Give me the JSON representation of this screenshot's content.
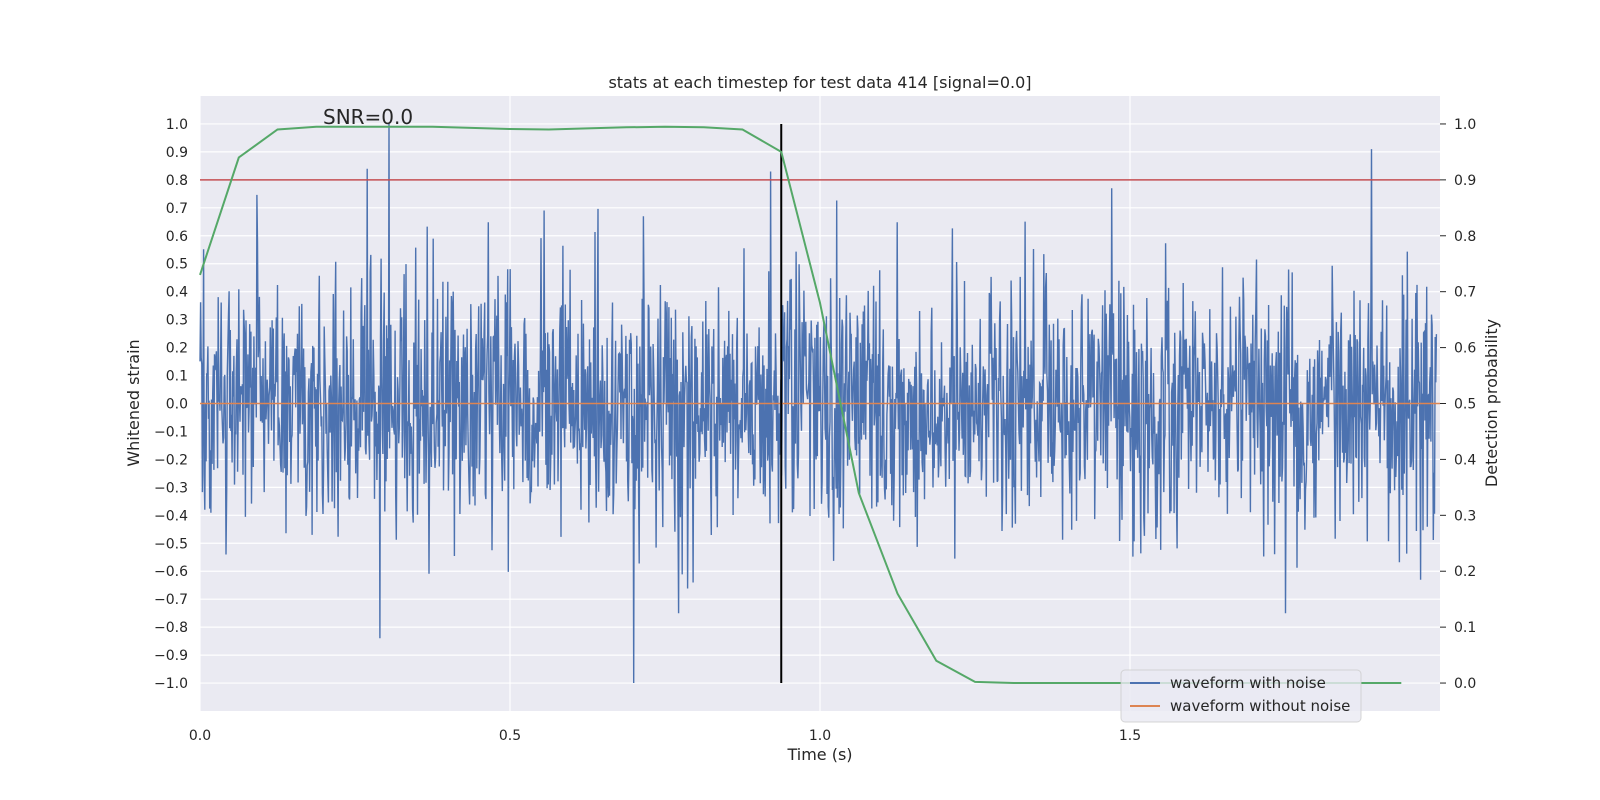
{
  "chart_data": {
    "type": "line",
    "title": "stats at each timestep for test data 414 [signal=0.0]",
    "annotation": "SNR=0.0",
    "xlabel": "Time (s)",
    "ylabel": "Whitened strain",
    "ylabel_right": "Detection probability",
    "xlim": [
      0.0,
      2.0
    ],
    "ylim": [
      -1.1,
      1.1
    ],
    "ylim_right": [
      -0.05,
      1.05
    ],
    "x_ticks": [
      "0.0",
      "0.5",
      "1.0",
      "1.5"
    ],
    "x_tick_values": [
      0.0,
      0.5,
      1.0,
      1.5
    ],
    "y_ticks": [
      "1.0",
      "0.9",
      "0.8",
      "0.7",
      "0.6",
      "0.5",
      "0.4",
      "0.3",
      "0.2",
      "0.1",
      "0.0",
      "−0.1",
      "−0.2",
      "−0.3",
      "−0.4",
      "−0.5",
      "−0.6",
      "−0.7",
      "−0.8",
      "−0.9",
      "−1.0"
    ],
    "y_tick_values": [
      1.0,
      0.9,
      0.8,
      0.7,
      0.6,
      0.5,
      0.4,
      0.3,
      0.2,
      0.1,
      0.0,
      -0.1,
      -0.2,
      -0.3,
      -0.4,
      -0.5,
      -0.6,
      -0.7,
      -0.8,
      -0.9,
      -1.0
    ],
    "y_ticks_right": [
      "1.0",
      "0.9",
      "0.8",
      "0.7",
      "0.6",
      "0.5",
      "0.4",
      "0.3",
      "0.2",
      "0.1",
      "0.0"
    ],
    "y_tick_values_right": [
      1.0,
      0.9,
      0.8,
      0.7,
      0.6,
      0.5,
      0.4,
      0.3,
      0.2,
      0.1,
      0.0
    ],
    "grid": true,
    "legend_position": "bottom-right",
    "series": [
      {
        "name": "waveform with noise",
        "color": "#4c72b0",
        "axis": "left",
        "style": "random noise, amplitude within about ±1.0, peak near t=0.305 reaching 1.0, minimum near t=0.70 reaching -1.0",
        "x_range": [
          0.0,
          2.0
        ],
        "samples": 2048,
        "notable_points": [
          [
            0.305,
            1.0
          ],
          [
            0.7,
            -1.0
          ],
          [
            1.89,
            0.91
          ],
          [
            0.27,
            0.84
          ],
          [
            0.92,
            0.83
          ],
          [
            0.29,
            -0.84
          ],
          [
            1.47,
            0.77
          ]
        ]
      },
      {
        "name": "waveform without noise",
        "color": "#dd8452",
        "axis": "left",
        "x": [
          0.0,
          2.0
        ],
        "y": [
          0.0,
          0.0
        ]
      },
      {
        "color": "#55a868",
        "axis": "right",
        "x": [
          0.0,
          0.0625,
          0.125,
          0.1875,
          0.25,
          0.3125,
          0.375,
          0.4375,
          0.5,
          0.5625,
          0.625,
          0.6875,
          0.75,
          0.8125,
          0.875,
          0.9375,
          1.0,
          1.0625,
          1.125,
          1.1875,
          1.25,
          1.3125,
          1.375,
          1.4375,
          1.5,
          1.5625,
          1.625,
          1.6875,
          1.75,
          1.8125,
          1.875,
          1.9375
        ],
        "y": [
          0.73,
          0.94,
          0.99,
          0.995,
          0.995,
          0.995,
          0.995,
          0.993,
          0.991,
          0.99,
          0.992,
          0.994,
          0.995,
          0.994,
          0.99,
          0.95,
          0.68,
          0.34,
          0.16,
          0.04,
          0.002,
          0.0,
          0.0,
          0.0,
          0.0,
          0.0,
          0.0,
          0.0,
          0.0,
          0.0,
          0.0,
          0.0
        ]
      }
    ],
    "reference_lines": [
      {
        "orientation": "horizontal",
        "axis": "right",
        "value": 0.9,
        "color": "#c44e52"
      },
      {
        "orientation": "vertical",
        "value": 0.9375,
        "color": "#000000",
        "y_range": [
          -1.0,
          1.0
        ]
      }
    ],
    "legend": [
      "waveform with noise",
      "waveform without noise"
    ]
  }
}
